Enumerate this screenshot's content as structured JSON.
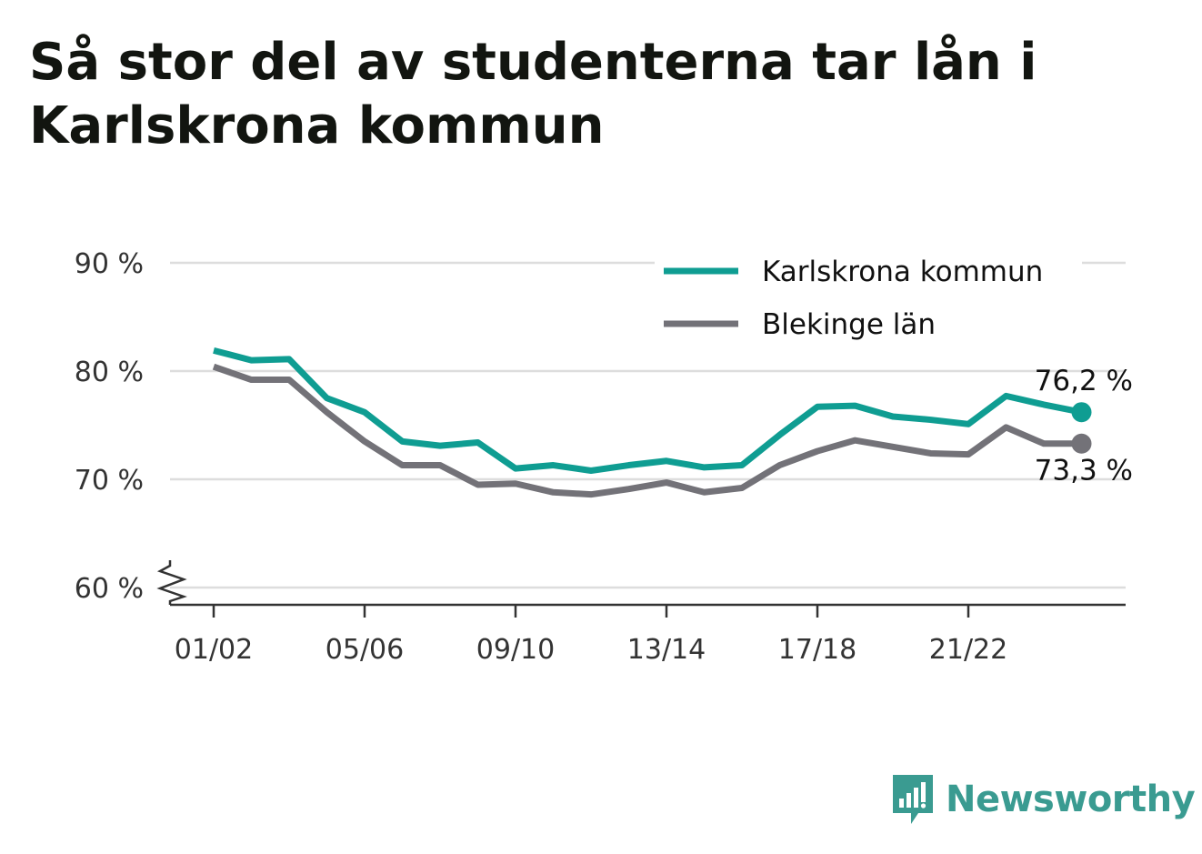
{
  "title": "Så stor del av studenterna tar lån i Karlskrona kommun",
  "brand": {
    "name": "Newsworthy",
    "icon": "bar-chart-speech-bubble-icon",
    "color": "#3a9b91"
  },
  "colors": {
    "karlskrona": "#0f9d92",
    "blekinge": "#737278",
    "grid": "#dddddd",
    "axis": "#333333"
  },
  "chart_data": {
    "type": "line",
    "title": "Så stor del av studenterna tar lån i Karlskrona kommun",
    "xlabel": "",
    "ylabel": "",
    "y_unit": " %",
    "ylim": [
      60,
      90
    ],
    "y_ticks": [
      60,
      70,
      80,
      90
    ],
    "y_tick_labels": [
      "60 %",
      "70 %",
      "80 %",
      "90 %"
    ],
    "axis_break": true,
    "grid": true,
    "legend_position": "top-right",
    "x": [
      "01/02",
      "02/03",
      "03/04",
      "04/05",
      "05/06",
      "06/07",
      "07/08",
      "08/09",
      "09/10",
      "10/11",
      "11/12",
      "12/13",
      "13/14",
      "14/15",
      "15/16",
      "16/17",
      "17/18",
      "18/19",
      "19/20",
      "20/21",
      "21/22",
      "22/23",
      "23/24",
      "24/25"
    ],
    "x_tick_labels": [
      "01/02",
      "05/06",
      "09/10",
      "13/14",
      "17/18",
      "21/22"
    ],
    "series": [
      {
        "name": "Karlskrona kommun",
        "color": "#0f9d92",
        "values": [
          81.9,
          81.0,
          81.1,
          77.5,
          76.2,
          73.5,
          73.1,
          73.4,
          71.0,
          71.3,
          70.8,
          71.3,
          71.7,
          71.1,
          71.3,
          74.1,
          76.7,
          76.8,
          75.8,
          75.5,
          75.1,
          77.7,
          76.9,
          76.2
        ],
        "end_label": "76,2 %"
      },
      {
        "name": "Blekinge län",
        "color": "#737278",
        "values": [
          80.4,
          79.2,
          79.2,
          76.2,
          73.5,
          71.3,
          71.3,
          69.5,
          69.6,
          68.8,
          68.6,
          69.1,
          69.7,
          68.8,
          69.2,
          71.3,
          72.6,
          73.6,
          73.0,
          72.4,
          72.3,
          74.8,
          73.3,
          73.3
        ],
        "end_label": "73,3 %"
      }
    ]
  }
}
